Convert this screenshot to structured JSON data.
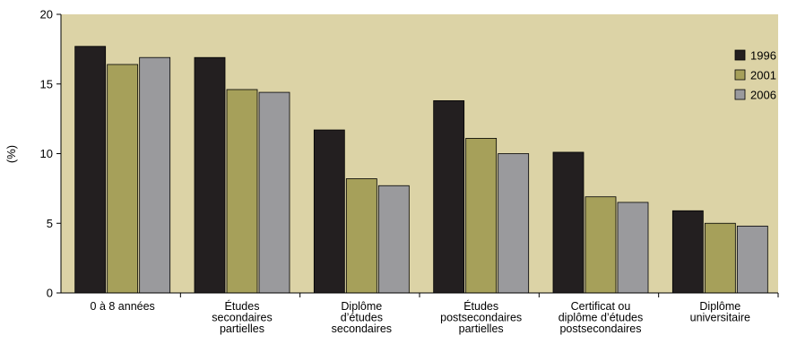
{
  "chart_data": {
    "type": "bar",
    "ylabel": "(%)",
    "ylim": [
      0,
      20
    ],
    "yticks": [
      "0",
      "5",
      "10",
      "15",
      "20"
    ],
    "categories": [
      [
        "0 à 8 années"
      ],
      [
        "Études",
        "secondaires",
        "partielles"
      ],
      [
        "Diplôme",
        "d’études",
        "secondaires"
      ],
      [
        "Études",
        "postsecondaires",
        "partielles"
      ],
      [
        "Certificat ou",
        "diplôme d’études",
        "postsecondaires"
      ],
      [
        "Diplôme",
        "universitaire"
      ]
    ],
    "series": [
      {
        "name": "1996",
        "color": "#231f20",
        "values": [
          17.7,
          16.9,
          11.7,
          13.8,
          10.1,
          5.9
        ]
      },
      {
        "name": "2001",
        "color": "#a6a05a",
        "values": [
          16.4,
          14.6,
          8.2,
          11.1,
          6.9,
          5.0
        ]
      },
      {
        "name": "2006",
        "color": "#9a9a9d",
        "values": [
          16.9,
          14.4,
          7.7,
          10.0,
          6.5,
          4.8
        ]
      }
    ],
    "plot_background": "#dcd3a6",
    "legend_position": "top-right",
    "grid": false
  }
}
